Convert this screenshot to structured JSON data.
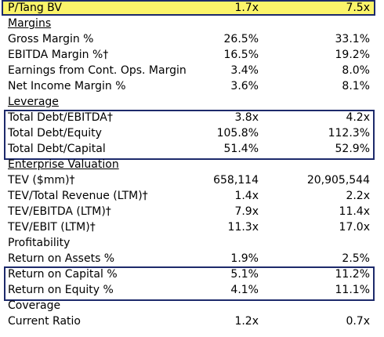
{
  "top_row": {
    "label": "P/Tang BV",
    "v1": "1.7x",
    "v2": "7.5x"
  },
  "margins": {
    "title": "Margins",
    "rows": [
      {
        "label": "Gross Margin %",
        "v1": "26.5%",
        "v2": "33.1%"
      },
      {
        "label": "EBITDA Margin %†",
        "v1": "16.5%",
        "v2": "19.2%"
      },
      {
        "label": "Earnings from Cont. Ops. Margin",
        "v1": "3.4%",
        "v2": "8.0%"
      },
      {
        "label": "Net Income Margin %",
        "v1": "3.6%",
        "v2": "8.1%"
      }
    ]
  },
  "leverage": {
    "title": "Leverage",
    "rows": [
      {
        "label": "Total Debt/EBITDA†",
        "v1": "3.8x",
        "v2": "4.2x"
      },
      {
        "label": "Total Debt/Equity",
        "v1": "105.8%",
        "v2": "112.3%"
      },
      {
        "label": "Total Debt/Capital",
        "v1": "51.4%",
        "v2": "52.9%"
      }
    ]
  },
  "enterprise_valuation": {
    "title": "Enterprise Valuation",
    "rows": [
      {
        "label": "TEV ($mm)†",
        "v1": "658,114",
        "v2": "20,905,544"
      },
      {
        "label": "TEV/Total Revenue (LTM)†",
        "v1": "1.4x",
        "v2": "2.2x"
      },
      {
        "label": "TEV/EBITDA (LTM)†",
        "v1": "7.9x",
        "v2": "11.4x"
      },
      {
        "label": "TEV/EBIT (LTM)†",
        "v1": "11.3x",
        "v2": "17.0x"
      }
    ]
  },
  "profitability": {
    "title": "Profitability",
    "rows": [
      {
        "label": "Return on Assets %",
        "v1": "1.9%",
        "v2": "2.5%"
      },
      {
        "label": "Return on Capital %",
        "v1": "5.1%",
        "v2": "11.2%"
      },
      {
        "label": "Return on Equity %",
        "v1": "4.1%",
        "v2": "11.1%"
      }
    ]
  },
  "coverage": {
    "title": "Coverage",
    "rows": [
      {
        "label": "Current Ratio",
        "v1": "1.2x",
        "v2": "0.7x"
      }
    ]
  }
}
